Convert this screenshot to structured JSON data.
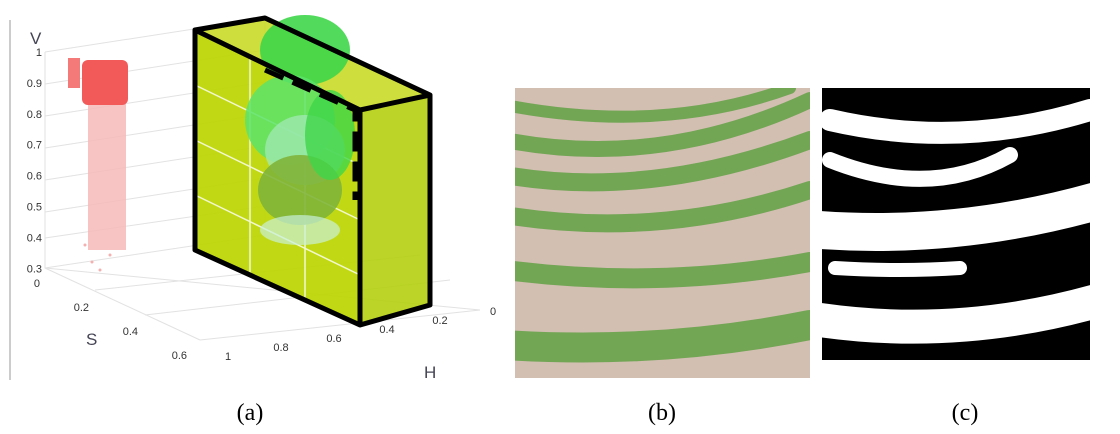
{
  "panel_a": {
    "axes": {
      "v_label": "V",
      "s_label": "S",
      "h_label": "H",
      "v_ticks": [
        "1",
        "0.9",
        "0.8",
        "0.7",
        "0.6",
        "0.5",
        "0.4",
        "0.3"
      ],
      "s_ticks": [
        "0",
        "0.2",
        "0.4",
        "0.6"
      ],
      "h_ticks": [
        "1",
        "0.8",
        "0.6",
        "0.4",
        "0.2",
        "0"
      ]
    },
    "caption": "(a)"
  },
  "panel_b": {
    "caption": "(b)"
  },
  "panel_c": {
    "caption": "(c)"
  }
}
